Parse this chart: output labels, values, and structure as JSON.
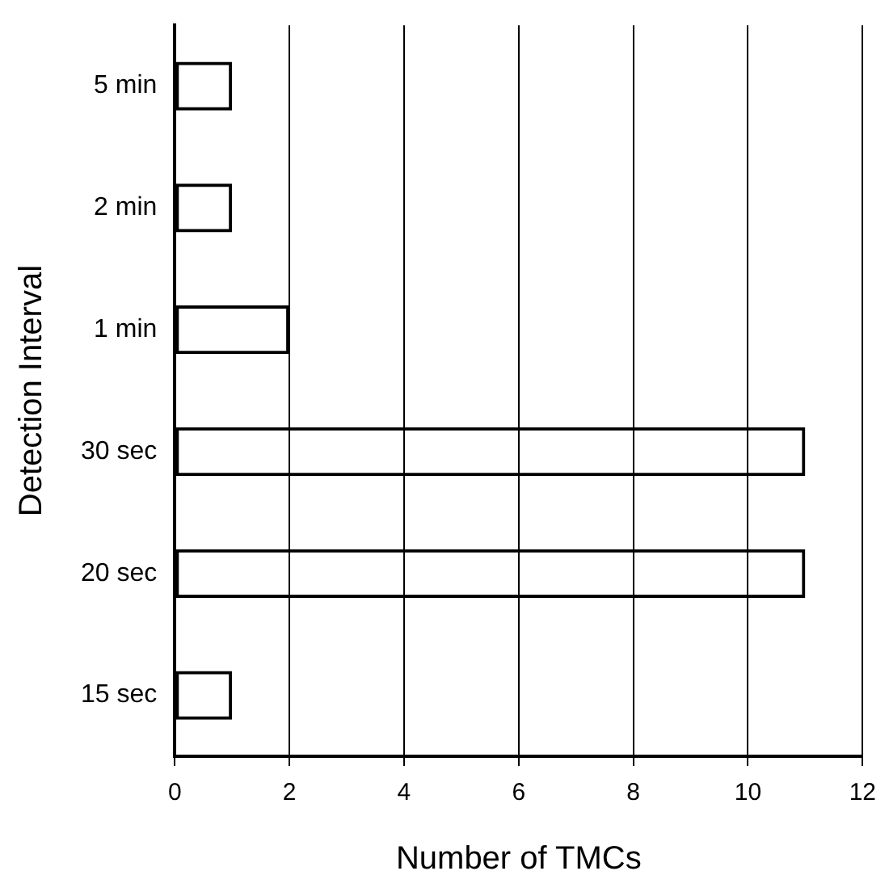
{
  "chart_data": {
    "type": "bar",
    "orientation": "horizontal",
    "xlabel": "Number of TMCs",
    "ylabel": "Detection Interval",
    "categories": [
      "5 min",
      "2 min",
      "1 min",
      "30 sec",
      "20 sec",
      "15 sec"
    ],
    "values": [
      1,
      1,
      2,
      11,
      11,
      1
    ],
    "color": "#000000",
    "xlim": [
      0,
      12
    ],
    "xticks": [
      0,
      2,
      4,
      6,
      8,
      10,
      12
    ],
    "grid": "x",
    "legend": false
  }
}
